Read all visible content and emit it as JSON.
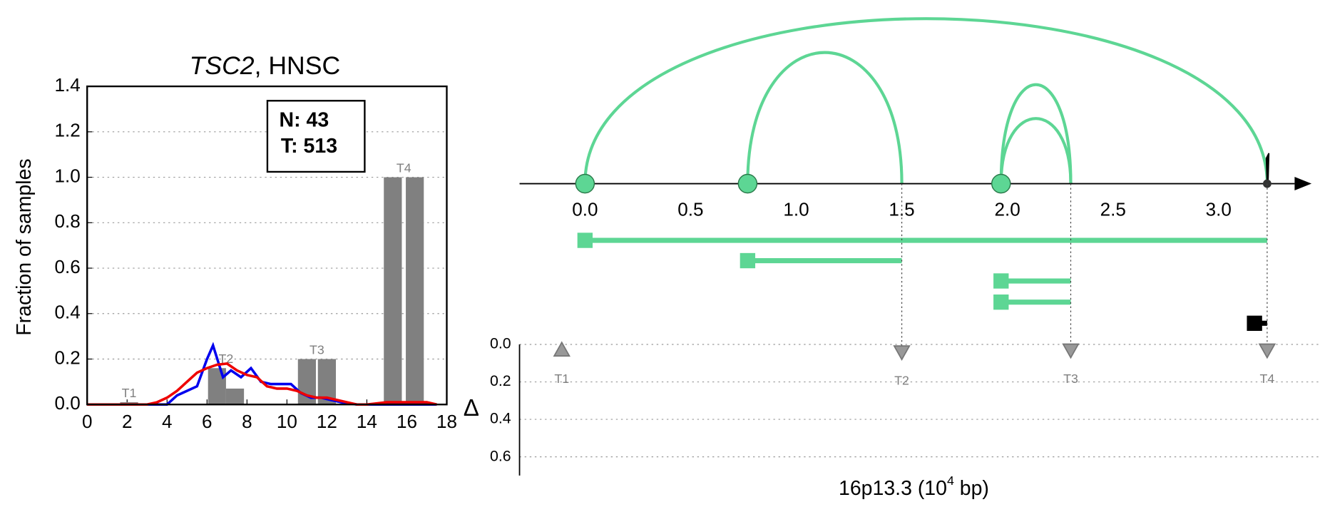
{
  "chart_data": [
    {
      "type": "bar-line",
      "title": {
        "gene": "TSC2",
        "rest": ", HNSC"
      },
      "ylabel": "Fraction of samples",
      "annotation": [
        "N: 43",
        "T: 513"
      ],
      "xlim": [
        0,
        18
      ],
      "xticks": [
        0,
        2,
        4,
        6,
        8,
        10,
        12,
        14,
        16,
        18
      ],
      "ylim": [
        0,
        1.4
      ],
      "yticks": [
        {
          "value": 0,
          "label": "0.0"
        },
        {
          "value": 0.2,
          "label": "0.2"
        },
        {
          "value": 0.4,
          "label": "0.4"
        },
        {
          "value": 0.6,
          "label": "0.6"
        },
        {
          "value": 0.8,
          "label": "0.8"
        },
        {
          "value": 1.0,
          "label": "1.0"
        },
        {
          "value": 1.2,
          "label": "1.2"
        },
        {
          "value": 1.4,
          "label": "1.4"
        }
      ],
      "grid": true,
      "bar_color": "#808080",
      "bar_groups": [
        {
          "label": "T1",
          "x": [
            2.1
          ],
          "values": [
            0.01
          ]
        },
        {
          "label": "T2",
          "x": [
            6.5,
            7.4
          ],
          "values": [
            0.16,
            0.07
          ]
        },
        {
          "label": "T3",
          "x": [
            11.0,
            12.0
          ],
          "values": [
            0.2,
            0.2
          ]
        },
        {
          "label": "T4",
          "x": [
            15.3,
            16.4
          ],
          "values": [
            1.0,
            1.0
          ]
        }
      ],
      "series": [
        {
          "color": "#0000ee",
          "x": [
            0,
            4,
            4.5,
            5,
            5.5,
            6,
            6.3,
            6.8,
            7.2,
            7.7,
            8.2,
            8.7,
            9.2,
            10.2,
            10.7,
            11.2,
            11.7,
            12.2,
            12.7,
            13.5,
            17.5
          ],
          "values": [
            0,
            0,
            0.04,
            0.06,
            0.08,
            0.2,
            0.26,
            0.12,
            0.15,
            0.12,
            0.16,
            0.1,
            0.09,
            0.09,
            0.05,
            0.03,
            0.03,
            0.02,
            0.01,
            0,
            0
          ]
        },
        {
          "color": "#ee0000",
          "x": [
            0,
            2,
            3,
            3.5,
            4,
            4.5,
            5,
            5.5,
            6,
            6.5,
            7,
            7.5,
            8,
            8.5,
            9,
            9.5,
            10,
            10.5,
            11,
            11.5,
            12,
            12.5,
            13,
            13.5,
            14,
            15,
            16,
            17,
            17.5
          ],
          "values": [
            0,
            0,
            0,
            0.01,
            0.03,
            0.06,
            0.1,
            0.14,
            0.16,
            0.175,
            0.18,
            0.15,
            0.13,
            0.12,
            0.08,
            0.07,
            0.07,
            0.06,
            0.04,
            0.03,
            0.03,
            0.02,
            0.01,
            0,
            0,
            0.01,
            0.01,
            0.01,
            0
          ]
        }
      ]
    },
    {
      "type": "arc",
      "color": "#5dd694",
      "xlim": [
        -0.31,
        3.36
      ],
      "xticks": [
        {
          "value": 0,
          "label": "0.0"
        },
        {
          "value": 0.5,
          "label": "0.5"
        },
        {
          "value": 1.0,
          "label": "1.0"
        },
        {
          "value": 1.5,
          "label": "1.5"
        },
        {
          "value": 2.0,
          "label": "2.0"
        },
        {
          "value": 2.5,
          "label": "2.5"
        },
        {
          "value": 3.0,
          "label": "3.0"
        }
      ],
      "ylim": [
        0,
        0.7
      ],
      "yticks": [
        {
          "value": 0,
          "label": "0.0"
        },
        {
          "value": 0.2,
          "label": "0.2"
        },
        {
          "value": 0.4,
          "label": "0.4"
        },
        {
          "value": 0.6,
          "label": "0.6"
        }
      ],
      "ylabel": "Δ",
      "xlabel": [
        "16p13.3 (10",
        "4",
        " bp)"
      ],
      "breakpoints": [
        0,
        0.77,
        1.97
      ],
      "terminal": 3.23,
      "arcs": [
        {
          "start": 0,
          "end": 3.23
        },
        {
          "start": 0.77,
          "end": 1.5
        },
        {
          "start": 1.97,
          "end": 2.3
        },
        {
          "start": 1.97,
          "end": 2.3
        }
      ],
      "segments": [
        {
          "start": 0,
          "end": 3.23
        },
        {
          "start": 0.77,
          "end": 1.5
        },
        {
          "start": 1.97,
          "end": 2.3
        },
        {
          "start": 1.97,
          "end": 2.3
        },
        {
          "start": 3.17,
          "end": 3.23,
          "color": "#000000"
        }
      ],
      "markers": [
        {
          "label": "T1",
          "x": -0.11,
          "delta": 0.03,
          "direction": "up"
        },
        {
          "label": "T2",
          "x": 1.5,
          "delta": 0.04,
          "direction": "down"
        },
        {
          "label": "T3",
          "x": 2.3,
          "delta": 0.03,
          "direction": "down"
        },
        {
          "label": "T4",
          "x": 3.23,
          "delta": 0.03,
          "direction": "down"
        }
      ]
    }
  ]
}
